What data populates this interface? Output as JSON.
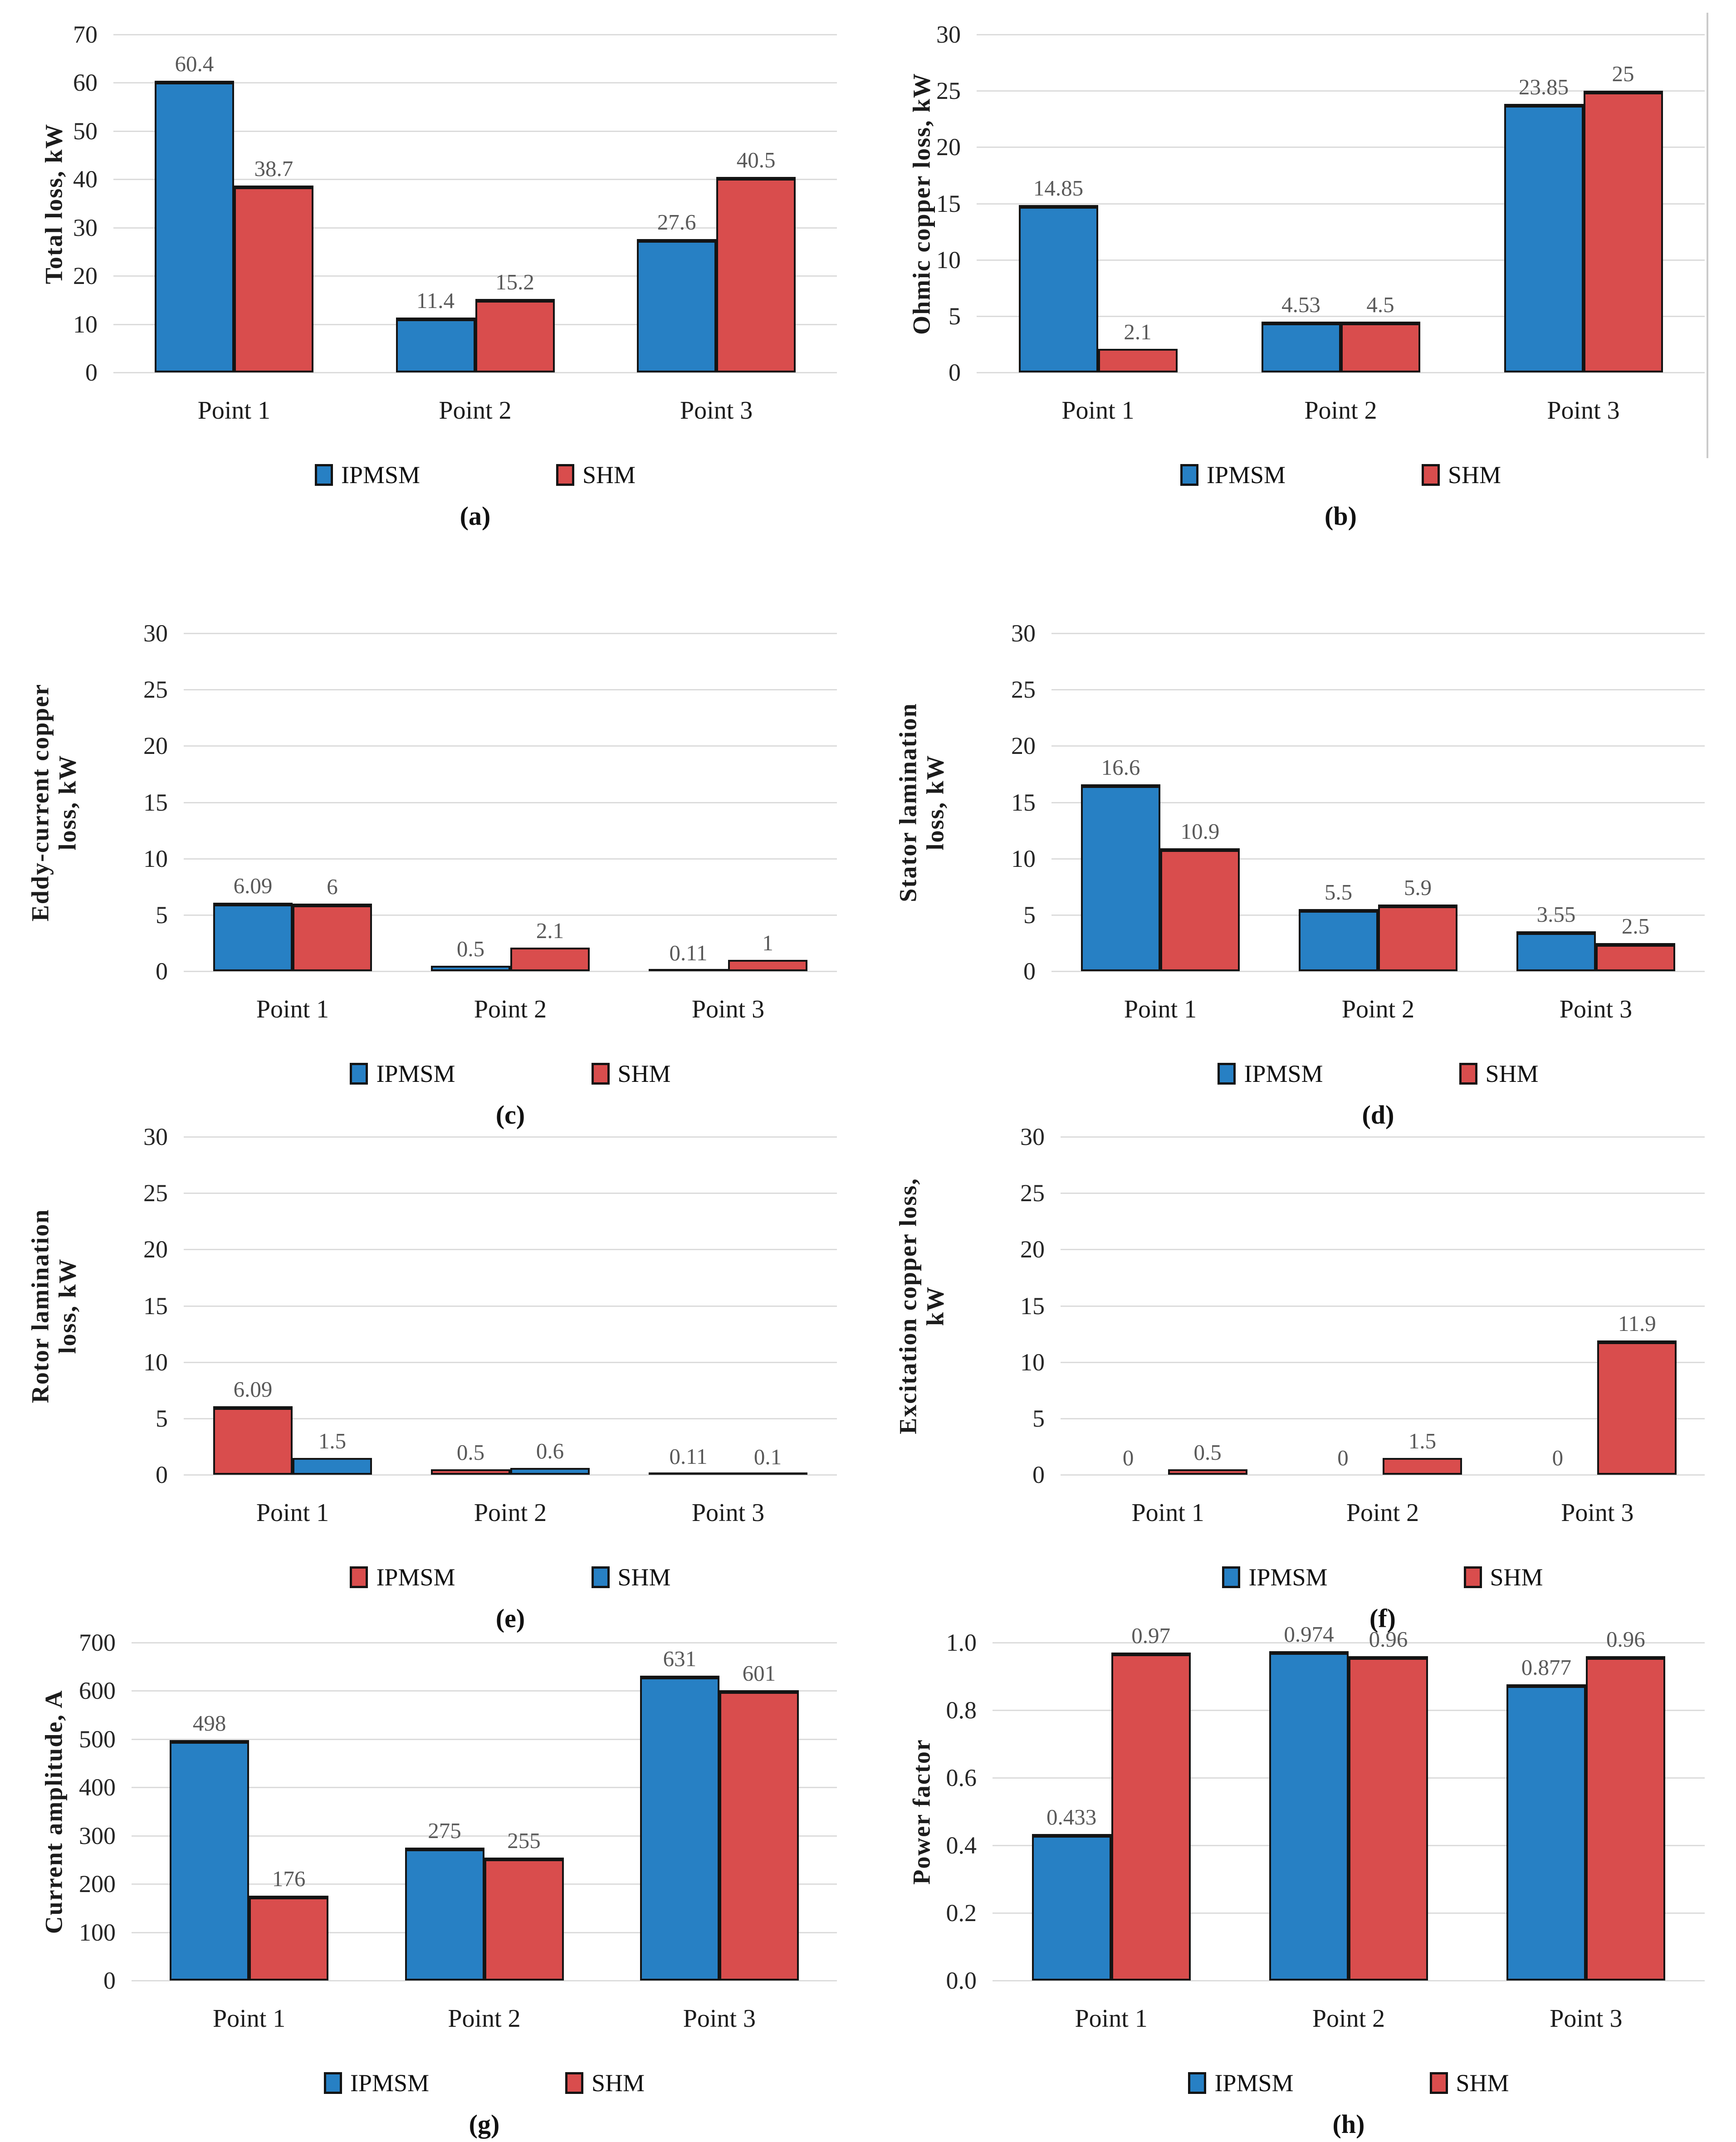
{
  "figure": {
    "background": "#ffffff",
    "grid_color": "#dcdcdc",
    "value_label_color": "#595959",
    "bar_outline_color": "#141414",
    "ipmsm_color": "#2780C4",
    "shm_color": "#D94D4D"
  },
  "chart_data": [
    {
      "type": "bar",
      "panel": "a",
      "caption": "(a)",
      "ylabel": "Total loss, kW",
      "ylabel_lines": [
        "Total loss,  kW"
      ],
      "ylim": [
        0,
        70
      ],
      "ystep": 10,
      "ytick_labels": [
        "70",
        "60",
        "50",
        "40",
        "30",
        "20",
        "10",
        "0"
      ],
      "grid": true,
      "legend_position": "bottom",
      "categories": [
        "Point 1",
        "Point 2",
        "Point 3"
      ],
      "series": [
        {
          "name": "IPMSM",
          "color": "#2780C4",
          "values": [
            60.4,
            11.4,
            27.6
          ],
          "labels": [
            "60.4",
            "11.4",
            "27.6"
          ]
        },
        {
          "name": "SHM",
          "color": "#D94D4D",
          "values": [
            38.7,
            15.2,
            40.5
          ],
          "labels": [
            "38.7",
            "15.2",
            "40.5"
          ]
        }
      ]
    },
    {
      "type": "bar",
      "panel": "b",
      "caption": "(b)",
      "ylabel": "Ohmic copper loss, kW",
      "ylabel_lines": [
        "Ohmic copper loss, kW"
      ],
      "ylim": [
        0,
        30
      ],
      "ystep": 5,
      "ytick_labels": [
        "30",
        "25",
        "20",
        "15",
        "10",
        "5",
        "0"
      ],
      "grid": true,
      "legend_position": "bottom",
      "categories": [
        "Point 1",
        "Point 2",
        "Point 3"
      ],
      "series": [
        {
          "name": "IPMSM",
          "color": "#2780C4",
          "values": [
            14.85,
            4.53,
            23.85
          ],
          "labels": [
            "14.85",
            "4.53",
            "23.85"
          ]
        },
        {
          "name": "SHM",
          "color": "#D94D4D",
          "values": [
            2.1,
            4.5,
            25
          ],
          "labels": [
            "2.1",
            "4.5",
            "25"
          ]
        }
      ]
    },
    {
      "type": "bar",
      "panel": "c",
      "caption": "(c)",
      "ylabel": "Eddy-current copper loss, kW",
      "ylabel_lines": [
        "Eddy-current copper",
        "loss, kW"
      ],
      "ylim": [
        0,
        30
      ],
      "ystep": 5,
      "ytick_labels": [
        "30",
        "25",
        "20",
        "15",
        "10",
        "5",
        "0"
      ],
      "grid": true,
      "legend_position": "bottom",
      "categories": [
        "Point 1",
        "Point 2",
        "Point 3"
      ],
      "series": [
        {
          "name": "IPMSM",
          "color": "#2780C4",
          "values": [
            6.09,
            0.5,
            0.11
          ],
          "labels": [
            "6.09",
            "0.5",
            "0.11"
          ]
        },
        {
          "name": "SHM",
          "color": "#D94D4D",
          "values": [
            6,
            2.1,
            1
          ],
          "labels": [
            "6",
            "2.1",
            "1"
          ]
        }
      ]
    },
    {
      "type": "bar",
      "panel": "d",
      "caption": "(d)",
      "ylabel": "Stator lamination loss, kW",
      "ylabel_lines": [
        "Stator lamination",
        "loss, kW"
      ],
      "ylim": [
        0,
        30
      ],
      "ystep": 5,
      "ytick_labels": [
        "30",
        "25",
        "20",
        "15",
        "10",
        "5",
        "0"
      ],
      "grid": true,
      "legend_position": "bottom",
      "categories": [
        "Point 1",
        "Point 2",
        "Point 3"
      ],
      "series": [
        {
          "name": "IPMSM",
          "color": "#2780C4",
          "values": [
            16.6,
            5.5,
            3.55
          ],
          "labels": [
            "16.6",
            "5.5",
            "3.55"
          ]
        },
        {
          "name": "SHM",
          "color": "#D94D4D",
          "values": [
            10.9,
            5.9,
            2.5
          ],
          "labels": [
            "10.9",
            "5.9",
            "2.5"
          ]
        }
      ]
    },
    {
      "type": "bar",
      "panel": "e",
      "caption": "(e)",
      "ylabel": "Rotor lamination loss, kW",
      "ylabel_lines": [
        "Rotor lamination",
        "loss, kW"
      ],
      "ylim": [
        0,
        30
      ],
      "ystep": 5,
      "ytick_labels": [
        "30",
        "25",
        "20",
        "15",
        "10",
        "5",
        "0"
      ],
      "grid": true,
      "legend_position": "bottom",
      "categories": [
        "Point 1",
        "Point 2",
        "Point 3"
      ],
      "series": [
        {
          "name": "IPMSM",
          "color": "#D94D4D",
          "values": [
            6.09,
            0.5,
            0.11
          ],
          "labels": [
            "6.09",
            "0.5",
            "0.11"
          ]
        },
        {
          "name": "SHM",
          "color": "#2780C4",
          "values": [
            1.5,
            0.6,
            0.1
          ],
          "labels": [
            "1.5",
            "0.6",
            "0.1"
          ]
        }
      ]
    },
    {
      "type": "bar",
      "panel": "f",
      "caption": "(f)",
      "ylabel": "Excitation copper loss, kW",
      "ylabel_lines": [
        "Excitation copper loss,",
        "kW"
      ],
      "ylim": [
        0,
        30
      ],
      "ystep": 5,
      "ytick_labels": [
        "30",
        "25",
        "20",
        "15",
        "10",
        "5",
        "0"
      ],
      "grid": true,
      "legend_position": "bottom",
      "categories": [
        "Point 1",
        "Point 2",
        "Point 3"
      ],
      "series": [
        {
          "name": "IPMSM",
          "color": "#2780C4",
          "values": [
            0,
            0,
            0
          ],
          "labels": [
            "0",
            "0",
            "0"
          ]
        },
        {
          "name": "SHM",
          "color": "#D94D4D",
          "values": [
            0.5,
            1.5,
            11.9
          ],
          "labels": [
            "0.5",
            "1.5",
            "11.9"
          ]
        }
      ]
    },
    {
      "type": "bar",
      "panel": "g",
      "caption": "(g)",
      "ylabel": "Current amplitude, A",
      "ylabel_lines": [
        "Current amplitude, A"
      ],
      "ylim": [
        0,
        700
      ],
      "ystep": 100,
      "ytick_labels": [
        "700",
        "600",
        "500",
        "400",
        "300",
        "200",
        "100",
        "0"
      ],
      "grid": true,
      "legend_position": "bottom",
      "categories": [
        "Point 1",
        "Point 2",
        "Point 3"
      ],
      "series": [
        {
          "name": "IPMSM",
          "color": "#2780C4",
          "values": [
            498,
            275,
            631
          ],
          "labels": [
            "498",
            "275",
            "631"
          ]
        },
        {
          "name": "SHM",
          "color": "#D94D4D",
          "values": [
            176,
            255,
            601
          ],
          "labels": [
            "176",
            "255",
            "601"
          ]
        }
      ]
    },
    {
      "type": "bar",
      "panel": "h",
      "caption": "(h)",
      "ylabel": "Power factor",
      "ylabel_lines": [
        "Power factor"
      ],
      "ylim": [
        0,
        1.0
      ],
      "ystep": 0.2,
      "ytick_labels": [
        "1.0",
        "0.8",
        "0.6",
        "0.4",
        "0.2",
        "0.0"
      ],
      "grid": true,
      "legend_position": "bottom",
      "categories": [
        "Point 1",
        "Point 2",
        "Point 3"
      ],
      "series": [
        {
          "name": "IPMSM",
          "color": "#2780C4",
          "values": [
            0.433,
            0.974,
            0.877
          ],
          "labels": [
            "0.433",
            "0.974",
            "0.877"
          ]
        },
        {
          "name": "SHM",
          "color": "#D94D4D",
          "values": [
            0.97,
            0.96,
            0.96
          ],
          "labels": [
            "0.97",
            "0.96",
            "0.96"
          ]
        }
      ]
    }
  ]
}
